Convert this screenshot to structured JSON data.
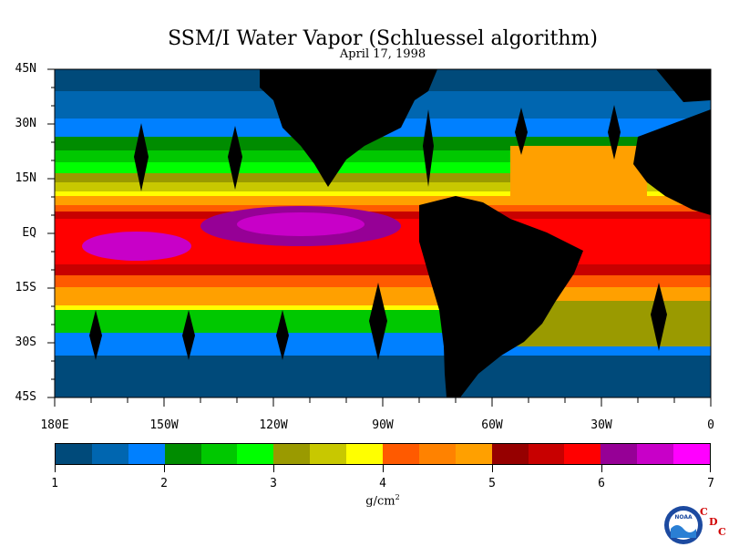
{
  "title": "SSM/I Water Vapor (Schluessel algorithm)",
  "subtitle": "April 17, 1998",
  "lat_labels": [
    "45N",
    "30N",
    "15N",
    "EQ",
    "15S",
    "30S",
    "45S"
  ],
  "lon_labels": [
    "180E",
    "150W",
    "120W",
    "90W",
    "60W",
    "30W",
    "0"
  ],
  "colorbar": {
    "tick_labels": [
      "1",
      "2",
      "3",
      "4",
      "5",
      "6",
      "7"
    ],
    "units": "g/cm",
    "units_exp": "2",
    "colors": [
      "#004a7a",
      "#0066b0",
      "#0080ff",
      "#008c00",
      "#00c800",
      "#00ff00",
      "#9a9a00",
      "#c8c800",
      "#ffff00",
      "#ff5a00",
      "#ff8200",
      "#ffa000",
      "#960000",
      "#c80000",
      "#ff0000",
      "#960096",
      "#c800c8",
      "#ff00ff"
    ]
  },
  "logo": {
    "text": "NOAA",
    "cdc_letters": [
      "C",
      "D",
      "C"
    ]
  },
  "chart_data": {
    "type": "heatmap",
    "title": "SSM/I Water Vapor (Schluessel algorithm)",
    "subtitle": "April 17, 1998",
    "xlim": [
      -180,
      0
    ],
    "ylim": [
      -45,
      45
    ],
    "value_range": [
      1,
      7
    ],
    "units": "g/cm2",
    "land_color": "#000000",
    "missing_swath_color": "#000000"
  }
}
